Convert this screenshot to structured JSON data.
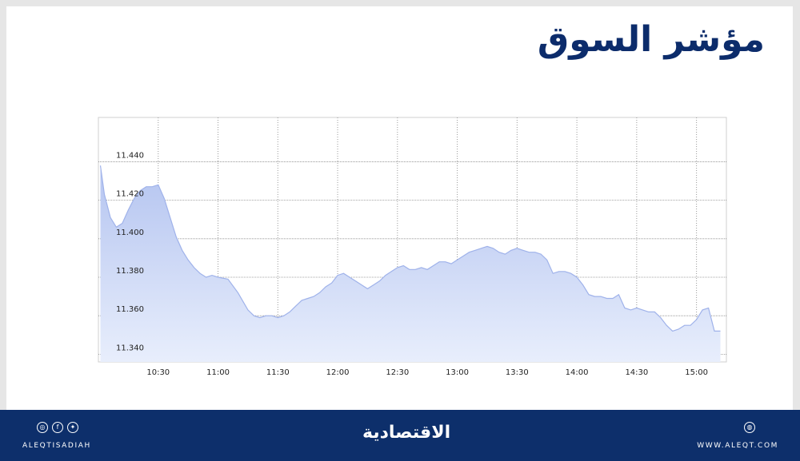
{
  "title": "مؤشر السوق",
  "chart_data": {
    "type": "area",
    "xlabel": "",
    "ylabel": "",
    "x_ticks": [
      "10:30",
      "11:00",
      "11:30",
      "12:00",
      "12:30",
      "13:00",
      "13:30",
      "14:00",
      "14:30",
      "15:00"
    ],
    "y_ticks": [
      "11.440",
      "11.420",
      "11.400",
      "11.380",
      "11.360",
      "11.340"
    ],
    "ylim": [
      11.336,
      11.463
    ],
    "grid": true,
    "legend": "none",
    "colors": {
      "fill_top": "#b4c4f0",
      "fill_bottom": "#e8eefc",
      "line": "#9fb2ea"
    },
    "series": [
      {
        "x": [
          "10:01",
          "10:03",
          "10:06",
          "10:09",
          "10:12",
          "10:15",
          "10:18",
          "10:21",
          "10:24",
          "10:27",
          "10:30",
          "10:33",
          "10:36",
          "10:39",
          "10:42",
          "10:45",
          "10:48",
          "10:51",
          "10:54",
          "10:57",
          "11:00",
          "11:05",
          "11:10",
          "11:15",
          "11:18",
          "11:21",
          "11:24",
          "11:27",
          "11:30",
          "11:33",
          "11:36",
          "11:39",
          "11:42",
          "11:45",
          "11:48",
          "11:51",
          "11:54",
          "11:57",
          "12:00",
          "12:03",
          "12:06",
          "12:09",
          "12:12",
          "12:15",
          "12:18",
          "12:21",
          "12:24",
          "12:27",
          "12:30",
          "12:33",
          "12:36",
          "12:39",
          "12:42",
          "12:45",
          "12:48",
          "12:51",
          "12:54",
          "12:57",
          "13:00",
          "13:03",
          "13:06",
          "13:09",
          "13:12",
          "13:15",
          "13:18",
          "13:21",
          "13:24",
          "13:27",
          "13:30",
          "13:33",
          "13:36",
          "13:39",
          "13:42",
          "13:45",
          "13:48",
          "13:51",
          "13:54",
          "13:57",
          "14:00",
          "14:03",
          "14:06",
          "14:09",
          "14:12",
          "14:15",
          "14:18",
          "14:21",
          "14:24",
          "14:27",
          "14:30",
          "14:33",
          "14:36",
          "14:39",
          "14:42",
          "14:45",
          "14:48",
          "14:51",
          "14:54",
          "14:57",
          "15:00",
          "15:03",
          "15:06",
          "15:09",
          "15:12"
        ],
        "values": [
          11.438,
          11.423,
          11.411,
          11.406,
          11.408,
          11.415,
          11.421,
          11.425,
          11.427,
          11.427,
          11.428,
          11.421,
          11.411,
          11.401,
          11.394,
          11.389,
          11.385,
          11.382,
          11.38,
          11.381,
          11.38,
          11.379,
          11.372,
          11.363,
          11.36,
          11.359,
          11.36,
          11.36,
          11.359,
          11.36,
          11.362,
          11.365,
          11.368,
          11.369,
          11.37,
          11.372,
          11.375,
          11.377,
          11.381,
          11.382,
          11.38,
          11.378,
          11.376,
          11.374,
          11.376,
          11.378,
          11.381,
          11.383,
          11.385,
          11.386,
          11.384,
          11.384,
          11.385,
          11.384,
          11.386,
          11.388,
          11.388,
          11.387,
          11.389,
          11.391,
          11.393,
          11.394,
          11.395,
          11.396,
          11.395,
          11.393,
          11.392,
          11.394,
          11.395,
          11.394,
          11.393,
          11.393,
          11.392,
          11.389,
          11.382,
          11.383,
          11.383,
          11.382,
          11.38,
          11.376,
          11.371,
          11.37,
          11.37,
          11.369,
          11.369,
          11.371,
          11.364,
          11.363,
          11.364,
          11.363,
          11.362,
          11.362,
          11.359,
          11.355,
          11.352,
          11.353,
          11.355,
          11.355,
          11.358,
          11.363,
          11.364,
          11.352,
          11.352
        ]
      }
    ]
  },
  "footer": {
    "handle": "ALEQTISADIAH",
    "logo": "الاقتصادية",
    "site": "WWW.ALEQT.COM",
    "social_icons": [
      "instagram-icon",
      "facebook-icon",
      "twitter-icon"
    ],
    "site_icon": "globe-icon"
  }
}
